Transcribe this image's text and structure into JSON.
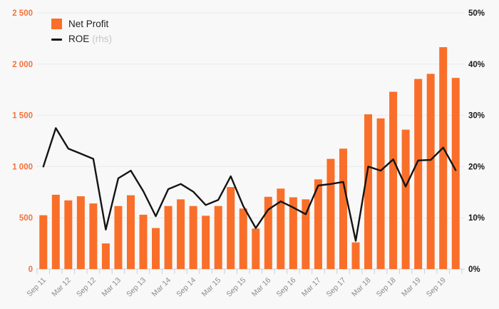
{
  "legend": {
    "net_profit_label": "Net Profit",
    "roe_label": "ROE",
    "roe_suffix": "(rhs)"
  },
  "colors": {
    "bar": "#f96f2a",
    "line": "#141414",
    "left_axis_text": "#f4713c",
    "right_axis_text": "#1a1a1a",
    "x_axis_text": "#8c8c8c",
    "grid": "#eaeaea",
    "tick": "#c9cee8",
    "background": "#f8f8f8"
  },
  "chart_data": {
    "type": "bar+line combo",
    "title": "",
    "legend_position": "top-left",
    "grid": "horizontal only",
    "x_labels": [
      "Sep 11",
      "Mar 12",
      "Sep 12",
      "Mar 13",
      "Sep 13",
      "Mar 14",
      "Sep 14",
      "Mar 15",
      "Sep 15",
      "Mar 16",
      "Sep 16",
      "Mar 17",
      "Sep 17",
      "Mar 18",
      "Sep 18",
      "Mar 19",
      "Sep 19"
    ],
    "x_label_every_nth_bar": 2,
    "x_label_rotation_deg": -45,
    "left_axis": {
      "min": 0,
      "max": 2500,
      "step": 500,
      "tick_labels": [
        "0",
        "500",
        "1 000",
        "1 500",
        "2 000",
        "2 500"
      ]
    },
    "right_axis": {
      "min": 0,
      "max": 50,
      "step": 10,
      "tick_labels": [
        "0%",
        "10%",
        "20%",
        "30%",
        "40%",
        "50%"
      ]
    },
    "series": [
      {
        "name": "Net Profit",
        "type": "bar",
        "axis": "left",
        "values": [
          525,
          725,
          670,
          710,
          640,
          250,
          615,
          720,
          530,
          400,
          615,
          680,
          615,
          520,
          615,
          800,
          590,
          395,
          705,
          785,
          700,
          680,
          875,
          1075,
          1175,
          260,
          1510,
          1470,
          1730,
          1360,
          1855,
          1905,
          2165,
          1865
        ]
      },
      {
        "name": "ROE (rhs)",
        "type": "line",
        "axis": "right",
        "values": [
          20.0,
          27.5,
          23.5,
          22.5,
          21.5,
          7.7,
          17.7,
          19.2,
          15.2,
          10.3,
          15.6,
          16.6,
          15.1,
          12.5,
          13.5,
          18.1,
          12.3,
          8.0,
          11.6,
          13.2,
          12.0,
          10.7,
          16.3,
          16.6,
          17.0,
          5.5,
          20.0,
          19.2,
          21.4,
          16.1,
          21.2,
          21.3,
          23.7,
          19.3
        ]
      }
    ]
  }
}
